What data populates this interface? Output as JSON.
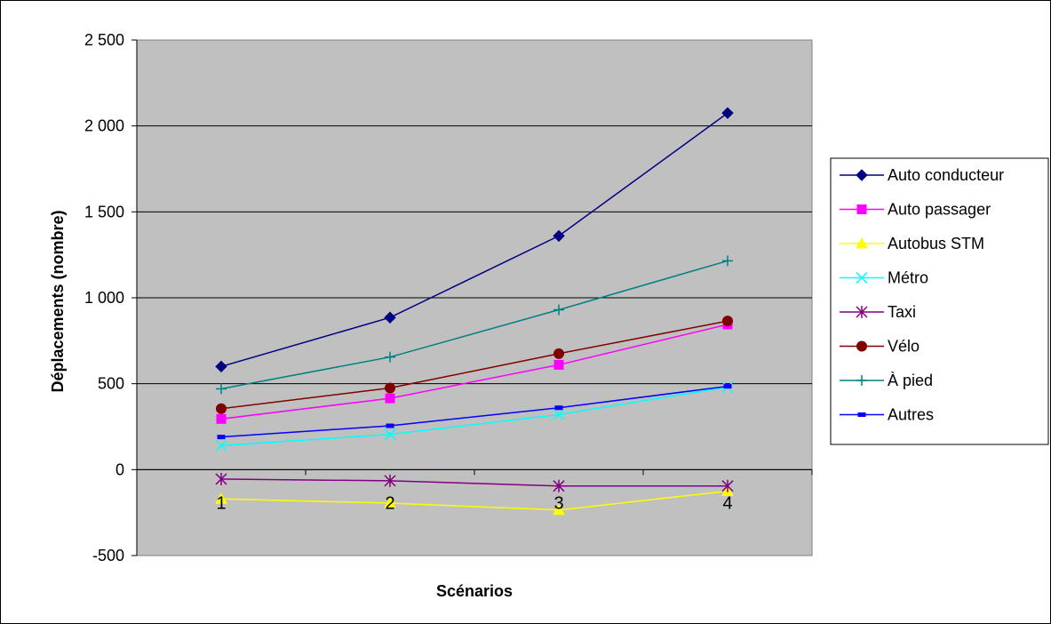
{
  "chart_data": {
    "type": "line",
    "title": "",
    "xlabel": "Scénarios",
    "ylabel": "Déplacements (nombre)",
    "categories": [
      "1",
      "2",
      "3",
      "4"
    ],
    "ylim": [
      -500,
      2500
    ],
    "yticks": [
      -500,
      0,
      500,
      1000,
      1500,
      2000,
      2500
    ],
    "ytick_labels": [
      "-500",
      "0",
      "500",
      "1 000",
      "1 500",
      "2 000",
      "2 500"
    ],
    "grid": "horizontal",
    "legend": "right",
    "plot_background": "#C0C0C0",
    "series": [
      {
        "name": "Auto conducteur",
        "values": [
          600,
          885,
          1360,
          2075
        ],
        "color": "#000080",
        "marker": "diamond"
      },
      {
        "name": "Auto passager",
        "values": [
          295,
          415,
          610,
          845
        ],
        "color": "#FF00FF",
        "marker": "square"
      },
      {
        "name": "Autobus STM",
        "values": [
          -170,
          -195,
          -235,
          -125
        ],
        "color": "#FFFF00",
        "marker": "triangle"
      },
      {
        "name": "Métro",
        "values": [
          140,
          205,
          320,
          480
        ],
        "color": "#00FFFF",
        "marker": "x"
      },
      {
        "name": "Taxi",
        "values": [
          -55,
          -65,
          -95,
          -95
        ],
        "color": "#800080",
        "marker": "star"
      },
      {
        "name": "Vélo",
        "values": [
          355,
          475,
          675,
          865
        ],
        "color": "#800000",
        "marker": "circle"
      },
      {
        "name": "À pied",
        "values": [
          470,
          655,
          930,
          1215
        ],
        "color": "#008080",
        "marker": "plus"
      },
      {
        "name": "Autres",
        "values": [
          190,
          255,
          360,
          485
        ],
        "color": "#0000FF",
        "marker": "dash"
      }
    ]
  }
}
